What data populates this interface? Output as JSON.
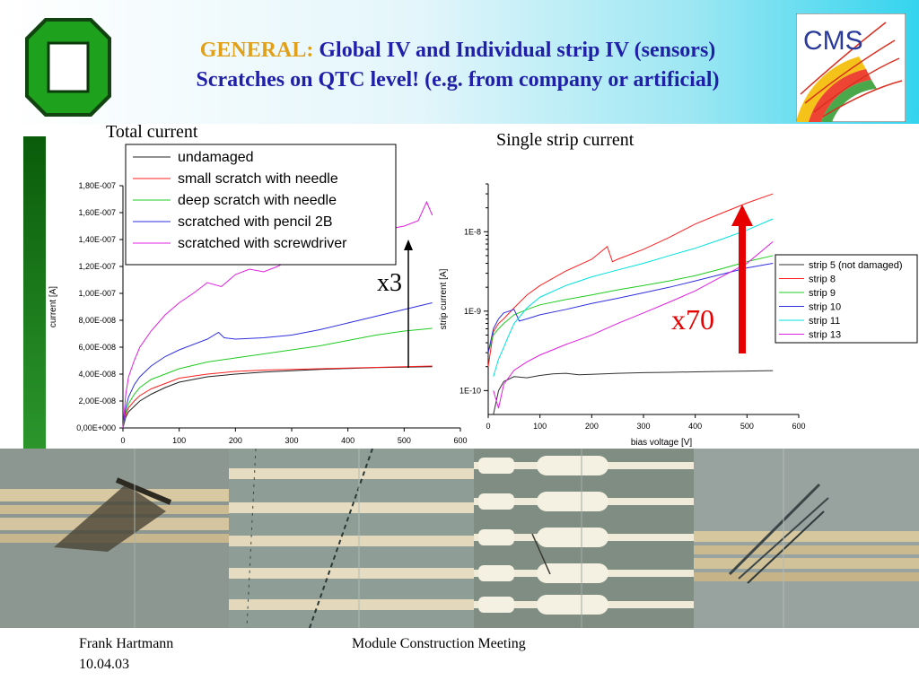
{
  "header": {
    "title_keyword": "GENERAL:",
    "title_line1": "Global IV and Individual strip IV (sensors)",
    "title_line2": "Scratches on QTC level! (e.g. from company or artificial)",
    "logo_text": "CMS"
  },
  "charts": {
    "left_title": "Total current",
    "right_title": "Single strip current"
  },
  "annotations": {
    "left_multiplier": "x3",
    "right_multiplier": "x70"
  },
  "footer": {
    "author": "Frank Hartmann",
    "date": "10.04.03",
    "meeting": "Module Construction Meeting"
  },
  "colors": {
    "title_blue": "#1f1fa8",
    "title_keyword": "#e0a019",
    "arrow_red": "#e60000"
  },
  "photos": [
    {
      "icon": "scratched-strips-photo"
    },
    {
      "icon": "needle-scratch-strips-photo"
    },
    {
      "icon": "strip-pads-photo"
    },
    {
      "icon": "screwdriver-scratch-photo"
    }
  ],
  "chart_data": [
    {
      "type": "line",
      "title": "Total current",
      "xlabel": "",
      "ylabel": "current [A]",
      "xlim": [
        0,
        600
      ],
      "ylim": [
        0,
        1.8e-07
      ],
      "x_ticks": [
        "0",
        "100",
        "200",
        "300",
        "400",
        "500",
        "600"
      ],
      "y_ticks": [
        "0,00E+000",
        "2,00E-008",
        "4,00E-008",
        "6,00E-008",
        "8,00E-008",
        "1,00E-007",
        "1,20E-007",
        "1,40E-007",
        "1,60E-007",
        "1,80E-007"
      ],
      "legend_position": "top-right",
      "series": [
        {
          "name": "undamaged",
          "color": "#202020",
          "x": [
            0,
            5,
            10,
            20,
            30,
            50,
            75,
            100,
            150,
            200,
            250,
            300,
            350,
            400,
            450,
            500,
            550
          ],
          "y": [
            0,
            8e-09,
            1.2e-08,
            1.6e-08,
            2e-08,
            2.5e-08,
            3e-08,
            3.4e-08,
            3.8e-08,
            4e-08,
            4.15e-08,
            4.25e-08,
            4.35e-08,
            4.42e-08,
            4.48e-08,
            4.52e-08,
            4.55e-08
          ]
        },
        {
          "name": "small scratch with needle",
          "color": "#ff2020",
          "x": [
            0,
            5,
            10,
            20,
            30,
            50,
            75,
            100,
            150,
            200,
            250,
            300,
            350,
            400,
            450,
            500,
            550
          ],
          "y": [
            0,
            1e-08,
            1.5e-08,
            2e-08,
            2.4e-08,
            2.9e-08,
            3.3e-08,
            3.7e-08,
            4e-08,
            4.2e-08,
            4.3e-08,
            4.35e-08,
            4.4e-08,
            4.45e-08,
            4.5e-08,
            4.55e-08,
            4.6e-08
          ]
        },
        {
          "name": "deep scratch with needle",
          "color": "#20cc20",
          "x": [
            0,
            5,
            10,
            20,
            30,
            50,
            75,
            100,
            150,
            200,
            250,
            300,
            350,
            400,
            450,
            500,
            550
          ],
          "y": [
            0,
            1.2e-08,
            1.8e-08,
            2.5e-08,
            3e-08,
            3.6e-08,
            4e-08,
            4.4e-08,
            4.9e-08,
            5.2e-08,
            5.5e-08,
            5.8e-08,
            6.1e-08,
            6.5e-08,
            6.9e-08,
            7.2e-08,
            7.4e-08
          ]
        },
        {
          "name": "scratched with pencil 2B",
          "color": "#3030e0",
          "x": [
            0,
            5,
            10,
            20,
            30,
            50,
            75,
            100,
            150,
            170,
            180,
            200,
            250,
            300,
            350,
            400,
            450,
            500,
            550
          ],
          "y": [
            0,
            1.5e-08,
            2.3e-08,
            3.2e-08,
            3.8e-08,
            4.6e-08,
            5.3e-08,
            5.8e-08,
            6.6e-08,
            7.1e-08,
            6.7e-08,
            6.6e-08,
            6.7e-08,
            6.9e-08,
            7.3e-08,
            7.8e-08,
            8.3e-08,
            8.8e-08,
            9.3e-08
          ]
        },
        {
          "name": "scratched with screwdriver",
          "color": "#e020e0",
          "x": [
            0,
            5,
            10,
            20,
            30,
            50,
            75,
            100,
            125,
            150,
            175,
            200,
            225,
            250,
            275,
            300,
            325,
            350,
            375,
            400,
            425,
            450,
            475,
            500,
            525,
            540,
            550
          ],
          "y": [
            0,
            2.5e-08,
            3.8e-08,
            5e-08,
            6e-08,
            7.2e-08,
            8.4e-08,
            9.3e-08,
            1e-07,
            1.08e-07,
            1.05e-07,
            1.14e-07,
            1.18e-07,
            1.16e-07,
            1.2e-07,
            1.26e-07,
            1.23e-07,
            1.3e-07,
            1.35e-07,
            1.33e-07,
            1.4e-07,
            1.42e-07,
            1.48e-07,
            1.5e-07,
            1.54e-07,
            1.68e-07,
            1.58e-07
          ]
        }
      ]
    },
    {
      "type": "line",
      "title": "Single strip current",
      "xlabel": "bias voltage [V]",
      "ylabel": "strip current [A]",
      "xlim": [
        0,
        600
      ],
      "ylim": [
        5e-11,
        4e-08
      ],
      "y_scale": "log",
      "x_ticks": [
        "0",
        "100",
        "200",
        "300",
        "400",
        "500",
        "600"
      ],
      "y_ticks": [
        "1E-10",
        "1E-9",
        "1E-8"
      ],
      "legend_position": "right",
      "series": [
        {
          "name": "strip 5 (not damaged)",
          "color": "#303030",
          "x": [
            10,
            20,
            30,
            50,
            75,
            100,
            125,
            150,
            175,
            200,
            250,
            300,
            350,
            400,
            450,
            500,
            550
          ],
          "y": [
            5e-11,
            1e-10,
            1.3e-10,
            1.5e-10,
            1.45e-10,
            1.55e-10,
            1.62e-10,
            1.65e-10,
            1.58e-10,
            1.6e-10,
            1.65e-10,
            1.68e-10,
            1.7e-10,
            1.72e-10,
            1.74e-10,
            1.76e-10,
            1.78e-10
          ]
        },
        {
          "name": "strip 8",
          "color": "#ff2020",
          "x": [
            0,
            10,
            20,
            30,
            50,
            75,
            100,
            150,
            200,
            230,
            240,
            250,
            300,
            350,
            400,
            450,
            500,
            550
          ],
          "y": [
            2e-10,
            5.5e-10,
            7e-10,
            8e-10,
            1.1e-09,
            1.6e-09,
            2.1e-09,
            3.2e-09,
            4.5e-09,
            6.5e-09,
            4.2e-09,
            4.5e-09,
            6e-09,
            8.5e-09,
            1.25e-08,
            1.7e-08,
            2.3e-08,
            3e-08
          ]
        },
        {
          "name": "strip 9",
          "color": "#20cc20",
          "x": [
            0,
            10,
            20,
            30,
            50,
            75,
            100,
            150,
            200,
            250,
            300,
            350,
            400,
            450,
            500,
            550
          ],
          "y": [
            3e-10,
            5e-10,
            6e-10,
            7e-10,
            9e-10,
            1.05e-09,
            1.2e-09,
            1.4e-09,
            1.6e-09,
            1.85e-09,
            2.1e-09,
            2.4e-09,
            2.8e-09,
            3.4e-09,
            4.2e-09,
            5e-09
          ]
        },
        {
          "name": "strip 10",
          "color": "#3030e0",
          "x": [
            0,
            10,
            20,
            30,
            50,
            60,
            75,
            100,
            150,
            200,
            250,
            300,
            350,
            400,
            450,
            500,
            550
          ],
          "y": [
            3e-10,
            6e-10,
            8e-10,
            9.5e-10,
            1.05e-09,
            7.5e-10,
            8e-10,
            9e-10,
            1.05e-09,
            1.25e-09,
            1.45e-09,
            1.7e-09,
            2e-09,
            2.4e-09,
            2.9e-09,
            3.5e-09,
            4e-09
          ]
        },
        {
          "name": "strip 11",
          "color": "#00e0e0",
          "x": [
            10,
            20,
            30,
            40,
            50,
            75,
            100,
            150,
            200,
            250,
            300,
            350,
            400,
            450,
            500,
            550
          ],
          "y": [
            1.5e-10,
            2.5e-10,
            3.5e-10,
            5e-10,
            7e-10,
            1.1e-09,
            1.5e-09,
            2.1e-09,
            2.7e-09,
            3.3e-09,
            4e-09,
            5e-09,
            6.2e-09,
            8e-09,
            1.05e-08,
            1.45e-08
          ]
        },
        {
          "name": "strip 13",
          "color": "#e020e0",
          "x": [
            10,
            20,
            30,
            50,
            75,
            100,
            150,
            200,
            250,
            300,
            350,
            400,
            450,
            500,
            550
          ],
          "y": [
            1e-10,
            6e-11,
            1.2e-10,
            1.8e-10,
            2.3e-10,
            2.8e-10,
            3.8e-10,
            5e-10,
            7e-10,
            9.5e-10,
            1.3e-09,
            1.8e-09,
            2.7e-09,
            4e-09,
            7.5e-09
          ]
        }
      ]
    }
  ]
}
